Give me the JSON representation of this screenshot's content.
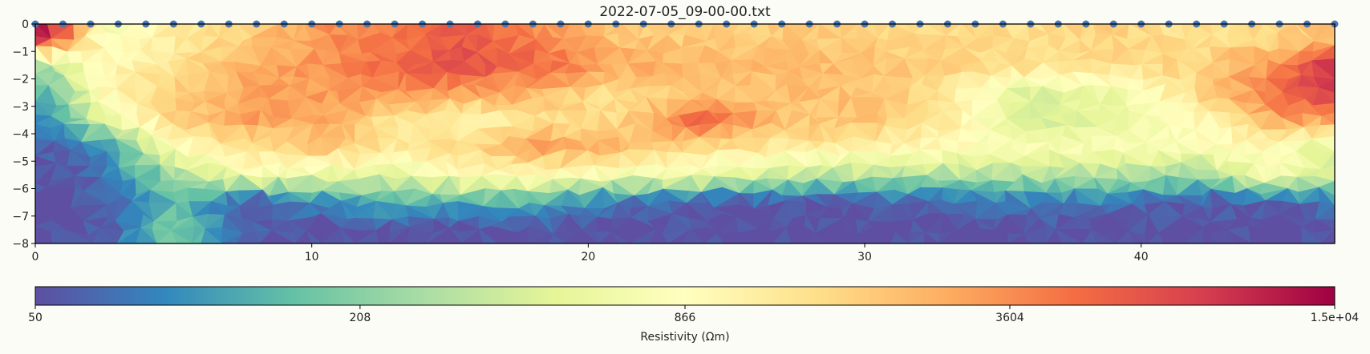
{
  "chart_data": [
    {
      "type": "heatmap",
      "title": "2022-07-05_09-00-00.txt",
      "xlabel": "",
      "ylabel": "",
      "xlim": [
        0,
        47
      ],
      "ylim": [
        -8,
        0
      ],
      "x_ticks": [
        0,
        10,
        20,
        30,
        40
      ],
      "x_tick_labels": [
        "0",
        "10",
        "20",
        "30",
        "40"
      ],
      "y_ticks": [
        0,
        -1,
        -2,
        -3,
        -4,
        -5,
        -6,
        -7,
        -8
      ],
      "y_tick_labels": [
        "0",
        "−1",
        "−2",
        "−3",
        "−4",
        "−5",
        "−6",
        "−7",
        "−8"
      ],
      "electrode_spacing": 1,
      "electrode_count": 48,
      "electrode_color": "#4a78b0",
      "colormap": "Spectral_r",
      "colorbar": {
        "label": "Resistivity (Ωm)",
        "scale": "log",
        "min": 50,
        "max": 15000,
        "ticks": [
          50,
          208,
          866,
          3604,
          15000
        ],
        "tick_labels": [
          "50",
          "208",
          "866",
          "3604",
          "1.5e+04"
        ]
      },
      "grid": false,
      "resistivity_grid": {
        "units": "Ωm",
        "depths": [
          -0.5,
          -1.5,
          -2.5,
          -3.5,
          -4.5,
          -5.5,
          -6.5,
          -7.5
        ],
        "x_centers": [
          0.5,
          2.5,
          5,
          7.5,
          10.5,
          13,
          15.5,
          18,
          21,
          24,
          27,
          30,
          33,
          36,
          39,
          42,
          45,
          46.5
        ],
        "values": [
          [
            11000,
            700,
            1200,
            1800,
            3500,
            4500,
            6000,
            3800,
            2000,
            1900,
            2000,
            1800,
            1600,
            1500,
            1800,
            1400,
            1700,
            2000
          ],
          [
            300,
            1000,
            1400,
            2500,
            3500,
            5000,
            7000,
            5500,
            3000,
            2300,
            2300,
            2200,
            1800,
            1500,
            1500,
            1800,
            3500,
            9000
          ],
          [
            150,
            1000,
            1800,
            2800,
            3200,
            3500,
            3000,
            2500,
            1500,
            1900,
            2200,
            2200,
            1300,
            450,
            600,
            1500,
            5000,
            8000
          ],
          [
            90,
            500,
            1800,
            3000,
            3000,
            1300,
            1000,
            1400,
            1600,
            6000,
            2000,
            2200,
            1200,
            400,
            500,
            900,
            3000,
            3000
          ],
          [
            60,
            100,
            900,
            1400,
            2000,
            1300,
            1600,
            3000,
            2500,
            1500,
            1300,
            1200,
            900,
            700,
            800,
            800,
            900,
            500
          ],
          [
            50,
            70,
            250,
            700,
            600,
            500,
            900,
            1000,
            700,
            600,
            400,
            300,
            300,
            300,
            300,
            250,
            800,
            400
          ],
          [
            50,
            60,
            150,
            60,
            90,
            150,
            120,
            140,
            70,
            60,
            50,
            55,
            65,
            80,
            70,
            55,
            60,
            70
          ],
          [
            50,
            55,
            200,
            60,
            50,
            50,
            50,
            52,
            50,
            50,
            50,
            50,
            50,
            50,
            50,
            50,
            50,
            50
          ]
        ]
      }
    }
  ]
}
